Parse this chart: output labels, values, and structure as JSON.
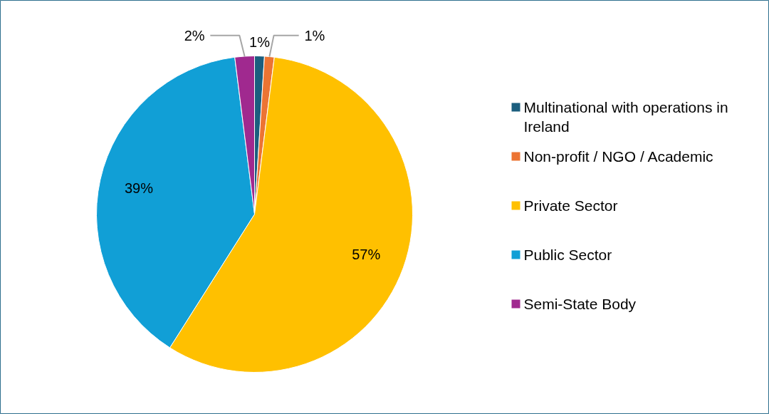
{
  "chart_data": {
    "type": "pie",
    "categories": [
      "Multinational with operations in Ireland",
      "Non-profit / NGO / Academic",
      "Private Sector",
      "Public Sector",
      "Semi-State Body"
    ],
    "values": [
      1,
      1,
      57,
      39,
      2
    ],
    "colors": [
      "#1b5e7e",
      "#ec7433",
      "#ffc000",
      "#119fd6",
      "#a0298f"
    ],
    "value_labels": [
      "1%",
      "1%",
      "57%",
      "39%",
      "2%"
    ],
    "legend": "right"
  }
}
